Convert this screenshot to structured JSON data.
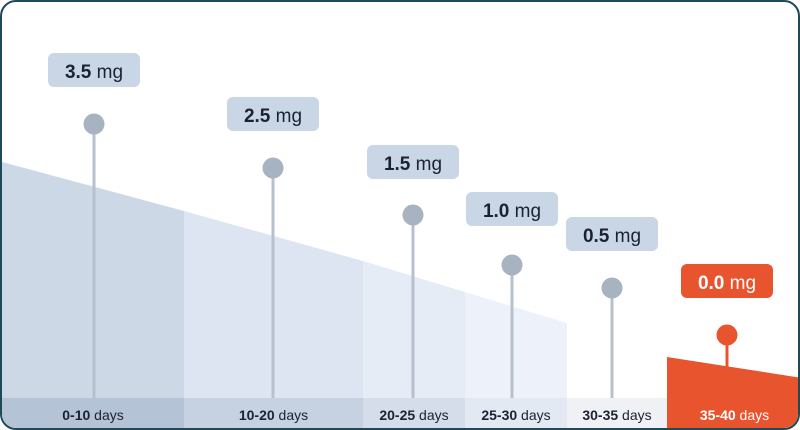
{
  "colors": {
    "frame": "#1e4a57",
    "label_bg": "#c9d6e6",
    "stem": "#b7c1cd",
    "marker": "#a8b3c1",
    "highlight": "#e8542e",
    "text": "#1a2233"
  },
  "unit": "mg",
  "segments": [
    {
      "range": "0-10",
      "suffix": " days",
      "value": "3.5",
      "highlight": false
    },
    {
      "range": "10-20",
      "suffix": " days",
      "value": "2.5",
      "highlight": false
    },
    {
      "range": "20-25",
      "suffix": " days",
      "value": "1.5",
      "highlight": false
    },
    {
      "range": "25-30",
      "suffix": " days",
      "value": "1.0",
      "highlight": false
    },
    {
      "range": "30-35",
      "suffix": " days",
      "value": "0.5",
      "highlight": false
    },
    {
      "range": "35-40",
      "suffix": " days",
      "value": "0.0",
      "highlight": true
    }
  ]
}
